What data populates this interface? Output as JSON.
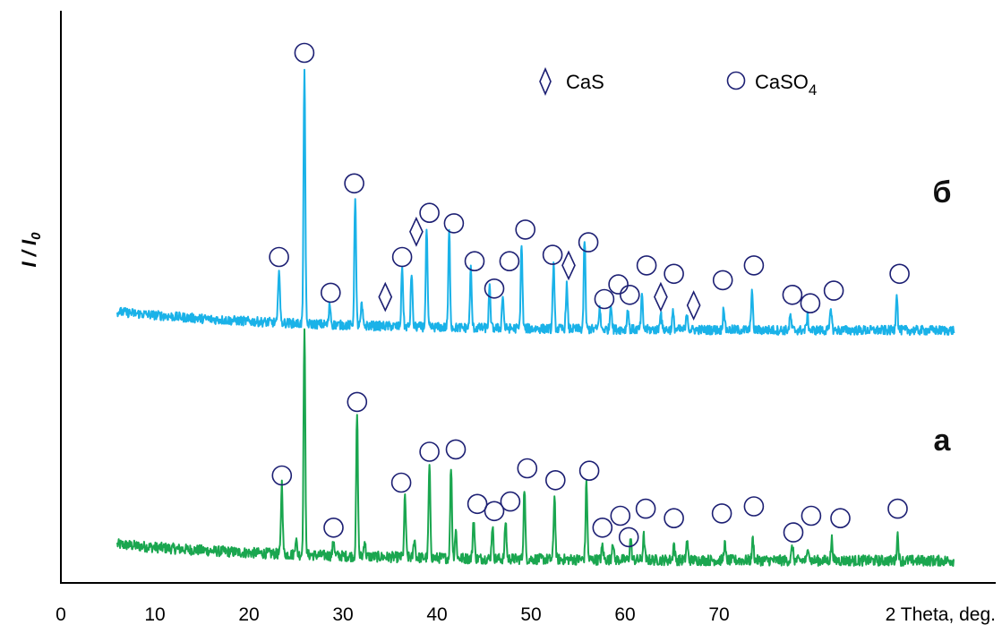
{
  "chart_data": {
    "type": "line",
    "xlabel": "2 Theta, deg.",
    "ylabel": "I / I0",
    "ylabel_main": "I / I",
    "ylabel_sub": "0",
    "xlim": [
      0,
      95
    ],
    "xticks": [
      0,
      10,
      20,
      30,
      40,
      50,
      60,
      70
    ],
    "grid": false,
    "legend": {
      "placement": "top-right",
      "items": [
        {
          "marker": "diamond",
          "label": "CaS",
          "label_main": "CaS",
          "label_sub": ""
        },
        {
          "marker": "circle",
          "label": "CaSO4",
          "label_main": "CaSO",
          "label_sub": "4"
        }
      ]
    },
    "colors": {
      "a": "#1aa64f",
      "b": "#1ab2e8",
      "marker_stroke": "#1c1f73"
    },
    "series": [
      {
        "name": "а",
        "color": "#1aa64f",
        "baseline_start": 0.11,
        "baseline_end": 0.04,
        "peaks": [
          {
            "x": 23.5,
            "h": 0.3
          },
          {
            "x": 25.0,
            "h": 0.07
          },
          {
            "x": 25.9,
            "h": 0.95
          },
          {
            "x": 29.0,
            "h": 0.07
          },
          {
            "x": 31.5,
            "h": 0.6
          },
          {
            "x": 32.3,
            "h": 0.07
          },
          {
            "x": 36.6,
            "h": 0.26
          },
          {
            "x": 37.6,
            "h": 0.08
          },
          {
            "x": 39.2,
            "h": 0.39
          },
          {
            "x": 41.5,
            "h": 0.39
          },
          {
            "x": 42.0,
            "h": 0.12
          },
          {
            "x": 43.9,
            "h": 0.17
          },
          {
            "x": 45.9,
            "h": 0.14
          },
          {
            "x": 47.3,
            "h": 0.16
          },
          {
            "x": 49.3,
            "h": 0.3
          },
          {
            "x": 52.5,
            "h": 0.27
          },
          {
            "x": 55.9,
            "h": 0.33
          },
          {
            "x": 57.6,
            "h": 0.06
          },
          {
            "x": 58.7,
            "h": 0.08
          },
          {
            "x": 60.6,
            "h": 0.09
          },
          {
            "x": 62.0,
            "h": 0.1
          },
          {
            "x": 65.2,
            "h": 0.07
          },
          {
            "x": 66.6,
            "h": 0.08
          },
          {
            "x": 70.6,
            "h": 0.07
          },
          {
            "x": 73.6,
            "h": 0.09
          },
          {
            "x": 77.8,
            "h": 0.06
          },
          {
            "x": 79.5,
            "h": 0.06
          },
          {
            "x": 82.0,
            "h": 0.09
          },
          {
            "x": 89.0,
            "h": 0.11
          }
        ]
      },
      {
        "name": "б",
        "color": "#1ab2e8",
        "baseline_start": 0.14,
        "baseline_end": 0.05,
        "peaks": [
          {
            "x": 23.2,
            "h": 0.27
          },
          {
            "x": 25.9,
            "h": 1.22
          },
          {
            "x": 28.6,
            "h": 0.1
          },
          {
            "x": 31.3,
            "h": 0.62
          },
          {
            "x": 32.0,
            "h": 0.1
          },
          {
            "x": 36.3,
            "h": 0.29
          },
          {
            "x": 37.3,
            "h": 0.26
          },
          {
            "x": 38.9,
            "h": 0.47
          },
          {
            "x": 41.3,
            "h": 0.46
          },
          {
            "x": 43.6,
            "h": 0.28
          },
          {
            "x": 45.6,
            "h": 0.19
          },
          {
            "x": 47.0,
            "h": 0.16
          },
          {
            "x": 49.0,
            "h": 0.41
          },
          {
            "x": 52.4,
            "h": 0.31
          },
          {
            "x": 53.8,
            "h": 0.21
          },
          {
            "x": 55.7,
            "h": 0.43
          },
          {
            "x": 57.3,
            "h": 0.1
          },
          {
            "x": 58.5,
            "h": 0.13
          },
          {
            "x": 60.3,
            "h": 0.1
          },
          {
            "x": 61.8,
            "h": 0.16
          },
          {
            "x": 63.8,
            "h": 0.09
          },
          {
            "x": 65.1,
            "h": 0.08
          },
          {
            "x": 66.6,
            "h": 0.08
          },
          {
            "x": 70.5,
            "h": 0.11
          },
          {
            "x": 73.5,
            "h": 0.19
          },
          {
            "x": 77.6,
            "h": 0.07
          },
          {
            "x": 79.4,
            "h": 0.07
          },
          {
            "x": 81.9,
            "h": 0.11
          },
          {
            "x": 88.9,
            "h": 0.18
          }
        ]
      }
    ],
    "annotations": {
      "a": {
        "circles": [
          {
            "x": 23.5,
            "h": 0.4
          },
          {
            "x": 29.0,
            "h": 0.18
          },
          {
            "x": 31.5,
            "h": 0.71
          },
          {
            "x": 36.2,
            "h": 0.37
          },
          {
            "x": 39.2,
            "h": 0.5
          },
          {
            "x": 42.0,
            "h": 0.51
          },
          {
            "x": 44.3,
            "h": 0.28
          },
          {
            "x": 46.1,
            "h": 0.25
          },
          {
            "x": 47.8,
            "h": 0.29
          },
          {
            "x": 49.6,
            "h": 0.43
          },
          {
            "x": 52.6,
            "h": 0.38
          },
          {
            "x": 56.2,
            "h": 0.42
          },
          {
            "x": 57.6,
            "h": 0.18
          },
          {
            "x": 59.5,
            "h": 0.23
          },
          {
            "x": 60.4,
            "h": 0.14
          },
          {
            "x": 62.2,
            "h": 0.26
          },
          {
            "x": 65.2,
            "h": 0.22
          },
          {
            "x": 70.3,
            "h": 0.24
          },
          {
            "x": 73.7,
            "h": 0.27
          },
          {
            "x": 77.9,
            "h": 0.16
          },
          {
            "x": 79.8,
            "h": 0.23
          },
          {
            "x": 82.9,
            "h": 0.22
          },
          {
            "x": 89.0,
            "h": 0.26
          }
        ],
        "diamonds": []
      },
      "b": {
        "circles": [
          {
            "x": 23.2,
            "h": 0.4
          },
          {
            "x": 25.9,
            "h": 1.37
          },
          {
            "x": 28.7,
            "h": 0.23
          },
          {
            "x": 31.2,
            "h": 0.75
          },
          {
            "x": 36.3,
            "h": 0.4
          },
          {
            "x": 39.2,
            "h": 0.61
          },
          {
            "x": 41.8,
            "h": 0.56
          },
          {
            "x": 44.0,
            "h": 0.38
          },
          {
            "x": 46.1,
            "h": 0.25
          },
          {
            "x": 47.7,
            "h": 0.38
          },
          {
            "x": 49.4,
            "h": 0.53
          },
          {
            "x": 52.3,
            "h": 0.41
          },
          {
            "x": 56.1,
            "h": 0.47
          },
          {
            "x": 57.8,
            "h": 0.2
          },
          {
            "x": 59.3,
            "h": 0.27
          },
          {
            "x": 60.5,
            "h": 0.22
          },
          {
            "x": 62.3,
            "h": 0.36
          },
          {
            "x": 65.2,
            "h": 0.32
          },
          {
            "x": 70.4,
            "h": 0.29
          },
          {
            "x": 73.7,
            "h": 0.36
          },
          {
            "x": 77.8,
            "h": 0.22
          },
          {
            "x": 79.7,
            "h": 0.18
          },
          {
            "x": 82.2,
            "h": 0.24
          },
          {
            "x": 89.2,
            "h": 0.32
          }
        ],
        "diamonds": [
          {
            "x": 34.5,
            "h": 0.21
          },
          {
            "x": 37.8,
            "h": 0.52
          },
          {
            "x": 54.0,
            "h": 0.36
          },
          {
            "x": 63.8,
            "h": 0.21
          },
          {
            "x": 67.3,
            "h": 0.17
          }
        ]
      }
    },
    "curve_labels": [
      {
        "series": "б",
        "text": "б"
      },
      {
        "series": "а",
        "text": "а"
      }
    ]
  }
}
